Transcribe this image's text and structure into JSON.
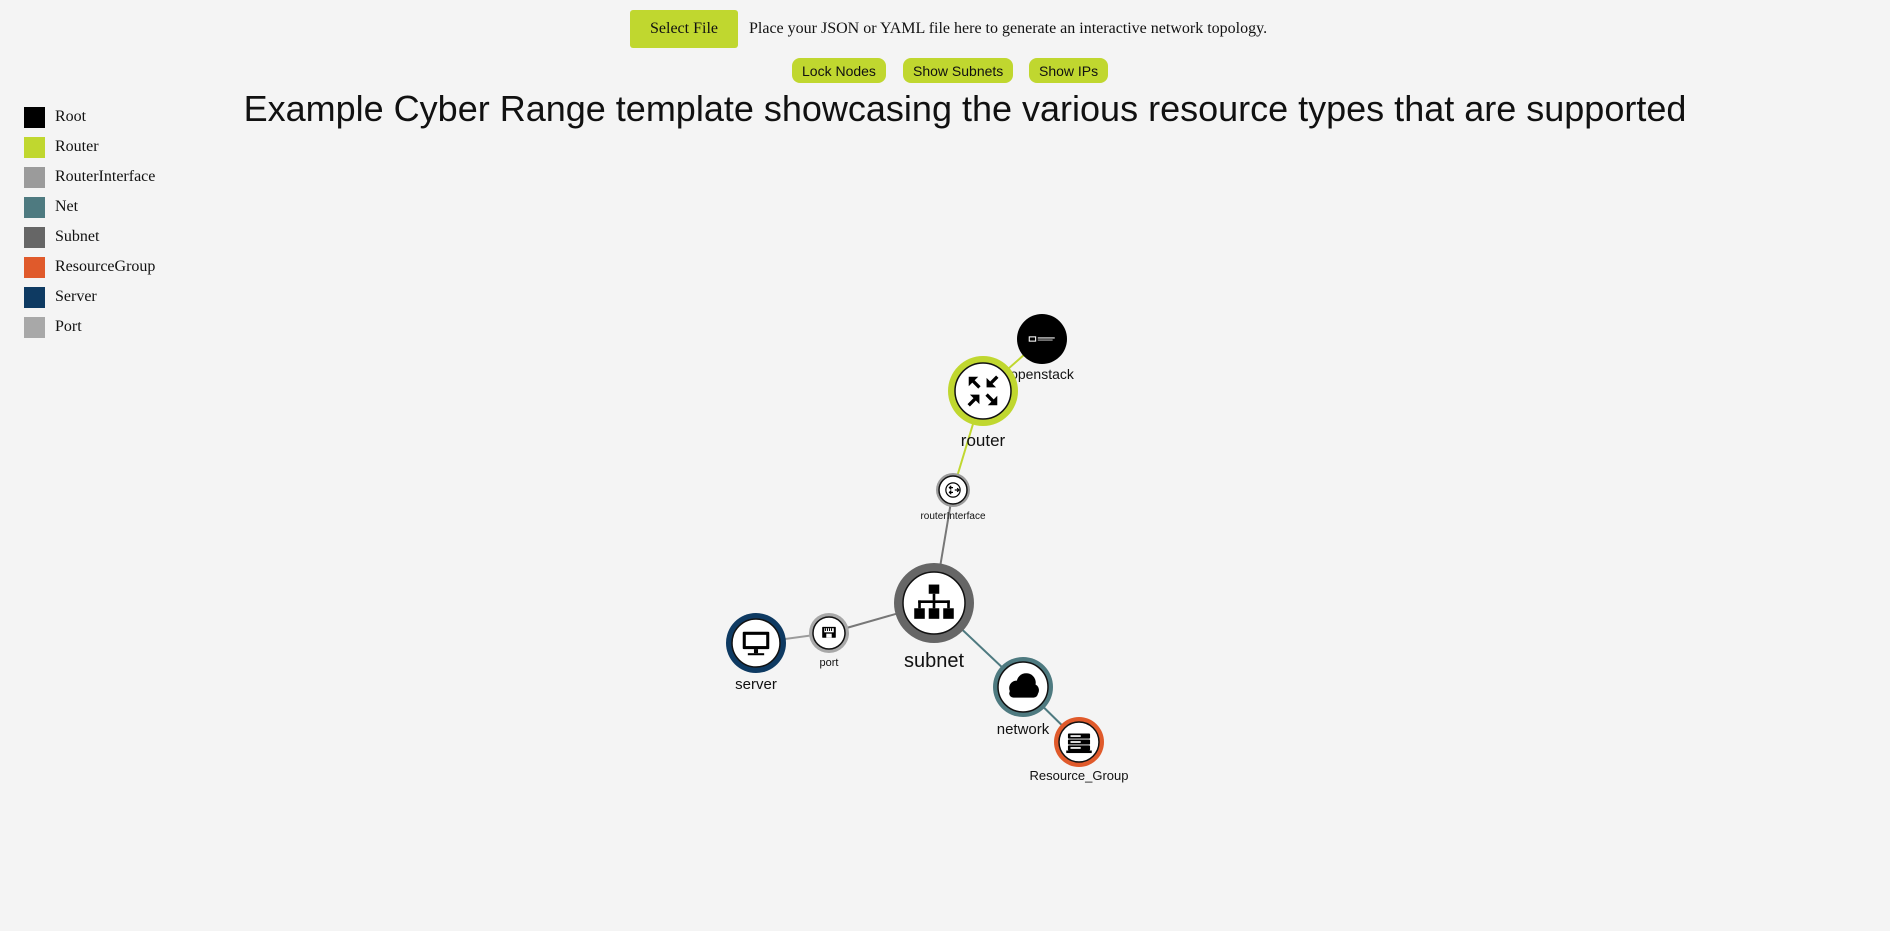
{
  "upload": {
    "button_label": "Select File",
    "hint": "Place your JSON or YAML file here to generate an interactive network topology."
  },
  "controls": {
    "lock_nodes": "Lock Nodes",
    "show_subnets": "Show Subnets",
    "show_ips": "Show IPs"
  },
  "title": "Example Cyber Range template showcasing the various resource types that are supported",
  "legend": [
    {
      "label": "Root",
      "color": "#000000"
    },
    {
      "label": "Router",
      "color": "#c0d72f"
    },
    {
      "label": "RouterInterface",
      "color": "#9b9b9b"
    },
    {
      "label": "Net",
      "color": "#4e7a80"
    },
    {
      "label": "Subnet",
      "color": "#666666"
    },
    {
      "label": "ResourceGroup",
      "color": "#e05a2b"
    },
    {
      "label": "Server",
      "color": "#0e3a62"
    },
    {
      "label": "Port",
      "color": "#a8a8a8"
    }
  ],
  "graph": {
    "nodes": [
      {
        "id": "openstack",
        "label": "openstack",
        "type": "Root",
        "icon": "openstack-logo-icon"
      },
      {
        "id": "router",
        "label": "router",
        "type": "Router",
        "icon": "router-icon"
      },
      {
        "id": "routerInterface",
        "label": "routerInterface",
        "type": "RouterInterface",
        "icon": "router-interface-icon"
      },
      {
        "id": "subnet",
        "label": "subnet",
        "type": "Subnet",
        "icon": "subnet-icon"
      },
      {
        "id": "port",
        "label": "port",
        "type": "Port",
        "icon": "ethernet-port-icon"
      },
      {
        "id": "server",
        "label": "server",
        "type": "Server",
        "icon": "monitor-icon"
      },
      {
        "id": "network",
        "label": "network",
        "type": "Net",
        "icon": "cloud-icon"
      },
      {
        "id": "Resource_Group",
        "label": "Resource_Group",
        "type": "ResourceGroup",
        "icon": "server-rack-icon"
      }
    ],
    "links": [
      {
        "source": "openstack",
        "target": "router"
      },
      {
        "source": "router",
        "target": "routerInterface"
      },
      {
        "source": "routerInterface",
        "target": "subnet"
      },
      {
        "source": "subnet",
        "target": "port"
      },
      {
        "source": "port",
        "target": "server"
      },
      {
        "source": "subnet",
        "target": "network"
      },
      {
        "source": "network",
        "target": "Resource_Group"
      }
    ]
  }
}
